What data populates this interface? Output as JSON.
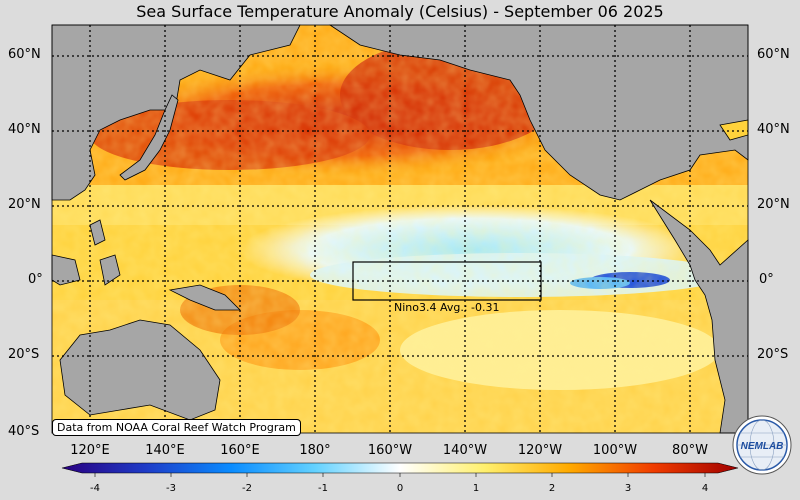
{
  "title": "Sea Surface Temperature Anomaly (Celsius) - September 06 2025",
  "lat_labels": [
    "60°N",
    "40°N",
    "20°N",
    "0°",
    "20°S",
    "40°S"
  ],
  "lon_labels": [
    "120°E",
    "140°E",
    "160°E",
    "180°",
    "160°W",
    "140°W",
    "120°W",
    "100°W",
    "80°W"
  ],
  "nino_label": "Nino3.4 Avg.: -0.31",
  "credit": "Data from NOAA Coral Reef Watch Program",
  "colorbar": {
    "ticks": [
      "-4",
      "-3",
      "-2",
      "-1",
      "0",
      "1",
      "2",
      "3",
      "4"
    ],
    "colors": [
      "#2a0080",
      "#1e3cc8",
      "#0a8cff",
      "#64d2ff",
      "#ffffff",
      "#fff06e",
      "#ffaa00",
      "#f03c00",
      "#a00000"
    ]
  },
  "logo_text": "NEMLAB"
}
